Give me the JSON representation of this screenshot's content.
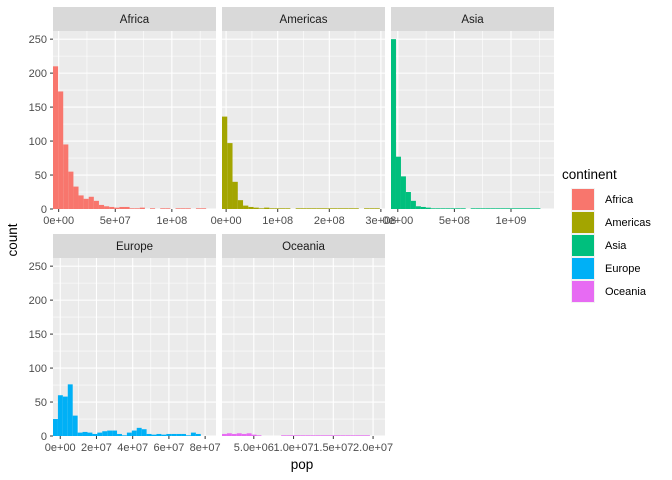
{
  "chart_data": {
    "type": "histogram",
    "xlabel": "pop",
    "ylabel": "count",
    "y_ticks": [
      "0",
      "50",
      "100",
      "150",
      "200",
      "250"
    ],
    "ylim": [
      0,
      262
    ],
    "grid": true,
    "legend": {
      "title": "continent",
      "position": "right",
      "entries": [
        {
          "name": "Africa",
          "color": "#F8766D"
        },
        {
          "name": "Americas",
          "color": "#A3A500"
        },
        {
          "name": "Asia",
          "color": "#00BF7D"
        },
        {
          "name": "Europe",
          "color": "#00B0F6"
        },
        {
          "name": "Oceania",
          "color": "#E76BF3"
        }
      ]
    },
    "panels": [
      {
        "name": "Africa",
        "color": "#F8766D",
        "xlim": [
          -5000000,
          139000000
        ],
        "x_ticks": [
          {
            "value": 0,
            "label": "0e+00"
          },
          {
            "value": 50000000,
            "label": "5e+07"
          },
          {
            "value": 100000000,
            "label": "1e+08"
          }
        ],
        "bin_width": 4510000,
        "counts": [
          210,
          173,
          95,
          55,
          33,
          20,
          15,
          18,
          12,
          6,
          4,
          3,
          2,
          3,
          3,
          1,
          1,
          2,
          0,
          1,
          0,
          1,
          1,
          0,
          1,
          1,
          1,
          0,
          1,
          1
        ]
      },
      {
        "name": "Americas",
        "color": "#A3A500",
        "xlim": [
          -8000000,
          308000000
        ],
        "x_ticks": [
          {
            "value": 0,
            "label": "0e+00"
          },
          {
            "value": 100000000,
            "label": "1e+08"
          },
          {
            "value": 200000000,
            "label": "2e+08"
          },
          {
            "value": 300000000,
            "label": "3e+08"
          }
        ],
        "bin_width": 10200000,
        "counts": [
          136,
          97,
          40,
          13,
          5,
          3,
          2,
          1,
          2,
          1,
          1,
          1,
          1,
          0,
          1,
          1,
          1,
          1,
          1,
          1,
          1,
          1,
          1,
          1,
          1,
          1,
          0,
          1,
          1,
          1
        ]
      },
      {
        "name": "Asia",
        "color": "#00BF7D",
        "xlim": [
          -60000000,
          1380000000
        ],
        "x_ticks": [
          {
            "value": 0,
            "label": "0e+00"
          },
          {
            "value": 500000000,
            "label": "5e+08"
          },
          {
            "value": 1000000000,
            "label": "1e+09"
          }
        ],
        "bin_width": 44000000,
        "counts": [
          250,
          77,
          48,
          25,
          12,
          4,
          3,
          2,
          1,
          1,
          1,
          1,
          1,
          1,
          1,
          0,
          1,
          1,
          1,
          1,
          1,
          1,
          1,
          1,
          1,
          1,
          1,
          1,
          1,
          1
        ]
      },
      {
        "name": "Europe",
        "color": "#00B0F6",
        "xlim": [
          -4000000,
          86000000
        ],
        "x_ticks": [
          {
            "value": 0,
            "label": "0e+00"
          },
          {
            "value": 20000000,
            "label": "2e+07"
          },
          {
            "value": 40000000,
            "label": "4e+07"
          },
          {
            "value": 60000000,
            "label": "6e+07"
          },
          {
            "value": 80000000,
            "label": "8e+07"
          }
        ],
        "bin_width": 2720000,
        "counts": [
          25,
          60,
          58,
          76,
          30,
          5,
          6,
          5,
          3,
          5,
          7,
          8,
          8,
          3,
          1,
          5,
          8,
          12,
          10,
          3,
          2,
          3,
          2,
          3,
          3,
          3,
          3,
          1,
          5,
          3
        ]
      },
      {
        "name": "Oceania",
        "color": "#E76BF3",
        "xlim": [
          1000000,
          21500000
        ],
        "x_ticks": [
          {
            "value": 5000000,
            "label": "5.0e+06"
          },
          {
            "value": 10000000,
            "label": "1.0e+07"
          },
          {
            "value": 15000000,
            "label": "1.5e+07"
          },
          {
            "value": 20000000,
            "label": "2.0e+07"
          }
        ],
        "bin_width": 620000,
        "counts": [
          3,
          4,
          3,
          4,
          3,
          4,
          2,
          1,
          0,
          0,
          0,
          0,
          1,
          1,
          1,
          1,
          1,
          1,
          1,
          1,
          1,
          1,
          1,
          1,
          1,
          1,
          1,
          1,
          1,
          1
        ]
      }
    ]
  }
}
